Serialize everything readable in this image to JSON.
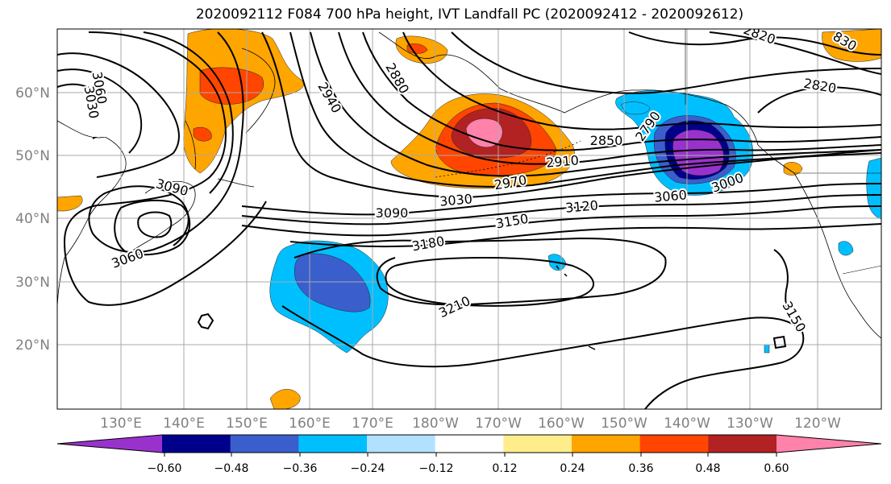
{
  "title": "2020092112 F084 700 hPa height, IVT Landfall PC (2020092412 - 2020092612)",
  "lat_labels": [
    "60°N",
    "50°N",
    "40°N",
    "30°N",
    "20°N"
  ],
  "lon_labels": [
    "130°E",
    "140°E",
    "150°E",
    "160°E",
    "170°E",
    "180°W",
    "170°W",
    "160°W",
    "150°W",
    "140°W",
    "130°W",
    "120°W"
  ],
  "contour_labels": [
    {
      "text": "3060",
      "rot": 80
    },
    {
      "text": "3030",
      "rot": 80
    },
    {
      "text": "2940",
      "rot": 60
    },
    {
      "text": "2880",
      "rot": 60
    },
    {
      "text": "2820",
      "rot": 20
    },
    {
      "text": "2820",
      "rot": 10
    },
    {
      "text": "2790",
      "rot": -55
    },
    {
      "text": "2850",
      "rot": 0
    },
    {
      "text": "2910",
      "rot": -5
    },
    {
      "text": "2970",
      "rot": -10
    },
    {
      "text": "3000",
      "rot": -20
    },
    {
      "text": "3060",
      "rot": -5
    },
    {
      "text": "3030",
      "rot": -5
    },
    {
      "text": "3090",
      "rot": 0
    },
    {
      "text": "3090",
      "rot": 15
    },
    {
      "text": "3150",
      "rot": -10
    },
    {
      "text": "3120",
      "rot": -5
    },
    {
      "text": "3180",
      "rot": -10
    },
    {
      "text": "3060",
      "rot": -20
    },
    {
      "text": "3210",
      "rot": -25
    },
    {
      "text": "3150",
      "rot": 60
    },
    {
      "text": "830",
      "rot": 30
    }
  ],
  "colorbar": {
    "ticks": [
      "−0.60",
      "−0.48",
      "−0.36",
      "−0.24",
      "−0.12",
      "0.12",
      "0.24",
      "0.36",
      "0.48",
      "0.60"
    ],
    "colors": [
      "#9932cc",
      "#00008b",
      "#3a5fcd",
      "#00bfff",
      "#b0e2ff",
      "#ffffff",
      "#ffec8b",
      "#ffa500",
      "#ff4500",
      "#b22222",
      "#ff82ab"
    ]
  },
  "field_colors": {
    "orange": "#ffa500",
    "red": "#ff4500",
    "darkred": "#b22222",
    "pink": "#ff82ab",
    "yellow": "#ffec8b",
    "lightblue": "#00bfff",
    "paleblue": "#b0e2ff",
    "blue": "#3a5fcd",
    "navy": "#00008b",
    "purple": "#9932cc"
  }
}
